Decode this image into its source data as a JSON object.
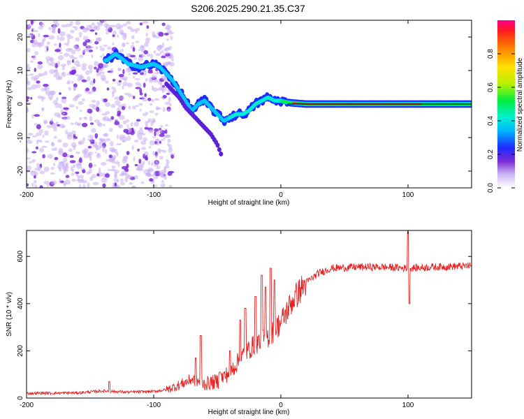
{
  "title": "S206.2025.290.21.35.C37",
  "chart_data": [
    {
      "type": "heatmap",
      "name": "spectrogram",
      "xlabel": "Height of straight line (km)",
      "ylabel": "Frequency (Hz)",
      "xlim": [
        -200,
        150
      ],
      "ylim": [
        -25,
        25
      ],
      "xticks": [
        -200,
        -100,
        0,
        100
      ],
      "yticks": [
        -20,
        -10,
        0,
        10,
        20
      ],
      "ridge": {
        "x": [
          -137,
          -130,
          -120,
          -110,
          -100,
          -95,
          -90,
          -85,
          -80,
          -75,
          -70,
          -65,
          -60,
          -55,
          -50,
          -45,
          -40,
          -35,
          -30,
          -25,
          -20,
          -15,
          -10,
          -5,
          0,
          5,
          10,
          20,
          40,
          60,
          80,
          100,
          120,
          150
        ],
        "y": [
          13,
          15,
          12,
          11,
          12,
          11,
          9,
          7,
          4,
          1,
          -2,
          0,
          1,
          -1,
          -3,
          -5,
          -4,
          -3,
          -3,
          -2,
          0,
          1,
          2,
          1,
          1,
          0.5,
          0.3,
          0,
          0,
          0,
          0,
          0,
          0,
          0
        ]
      },
      "secondary_branch": {
        "x": [
          -90,
          -80,
          -75,
          -70,
          -65,
          -60,
          -55,
          -50,
          -47
        ],
        "y": [
          6,
          2,
          -1,
          -3,
          -5,
          -7,
          -9,
          -12,
          -15
        ]
      },
      "colorbar": {
        "label": "Normalized spectral amplitude",
        "ticks": [
          0.0,
          0.2,
          0.4,
          0.6,
          0.8
        ],
        "range": [
          0,
          1
        ],
        "tick_labels": [
          "0.0",
          "0.2",
          "0.4",
          "0.6",
          "0.8"
        ]
      }
    },
    {
      "type": "line",
      "name": "snr",
      "xlabel": "Height of straight line (km)",
      "ylabel": "SNR (10 * v/v)",
      "xlim": [
        -200,
        150
      ],
      "ylim": [
        0,
        710
      ],
      "xticks": [
        -200,
        -100,
        0,
        100
      ],
      "yticks": [
        0,
        200,
        400,
        600
      ],
      "color": "#e82020",
      "trend": {
        "x": [
          -200,
          -160,
          -140,
          -120,
          -100,
          -90,
          -80,
          -70,
          -60,
          -50,
          -40,
          -30,
          -20,
          -10,
          0,
          10,
          20,
          30,
          40,
          60,
          80,
          100,
          120,
          150
        ],
        "y": [
          20,
          22,
          30,
          25,
          28,
          35,
          55,
          80,
          60,
          70,
          110,
          180,
          230,
          260,
          320,
          420,
          490,
          530,
          550,
          555,
          555,
          550,
          555,
          560
        ]
      },
      "spikes": {
        "x": [
          -135,
          -67,
          -63,
          -48,
          -40,
          -32,
          -28,
          -20,
          -15,
          -12,
          -8,
          -5,
          100,
          101
        ],
        "y": [
          70,
          170,
          265,
          110,
          200,
          330,
          380,
          430,
          520,
          470,
          550,
          500,
          705,
          400
        ]
      }
    }
  ],
  "colors": {
    "scatter": "#8a3fe8",
    "ridge_core": "#e53935",
    "line": "#e82020"
  }
}
